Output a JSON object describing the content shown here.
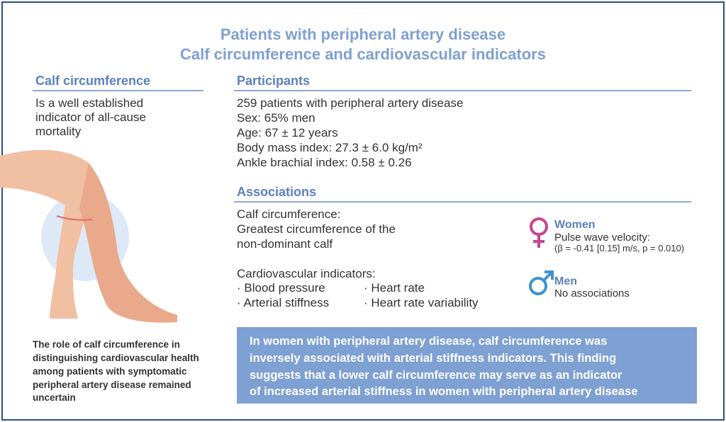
{
  "header": {
    "title_lines": [
      "Patients with peripheral artery disease",
      "Calf circumference and cardiovascular indicators"
    ]
  },
  "left": {
    "heading": "Calf circumference",
    "body_lines": [
      "Is a well established",
      "indicator of all-cause",
      "mortality"
    ],
    "note_lines": [
      "The role of calf circumference in",
      "distinguishing cardiovascular health",
      "among patients with symptomatic",
      "peripheral artery disease remained",
      "uncertain"
    ]
  },
  "participants": {
    "heading": "Participants",
    "lines": [
      "259 patients with peripheral artery disease",
      "Sex: 65% men",
      "Age: 67 ± 12 years",
      "Body mass index: 27.3 ± 6.0 kg/m²",
      "Ankle brachial index: 0.58 ± 0.26"
    ]
  },
  "associations": {
    "heading": "Associations",
    "calf_lines": [
      "Calf circumference:",
      "Greatest circumference of the",
      "non-dominant calf"
    ],
    "indicators_heading": "Cardiovascular indicators:",
    "indicators": [
      "· Blood pressure",
      "· Heart rate",
      "· Arterial stiffness",
      "· Heart rate variability"
    ],
    "women": {
      "label": "Women",
      "lines": [
        "Pulse wave velocity:",
        "(β = -0.41 [0.15] m/s, p = 0.010)"
      ]
    },
    "men": {
      "label": "Men",
      "lines": [
        "No associations"
      ]
    }
  },
  "conclusion": {
    "lines": [
      "In women with peripheral artery disease, calf circumference was",
      "inversely associated with arterial stiffness indicators. This finding",
      "suggests that a lower calf circumference may serve as an indicator",
      "of increased arterial stiffness in women with peripheral artery disease"
    ]
  }
}
